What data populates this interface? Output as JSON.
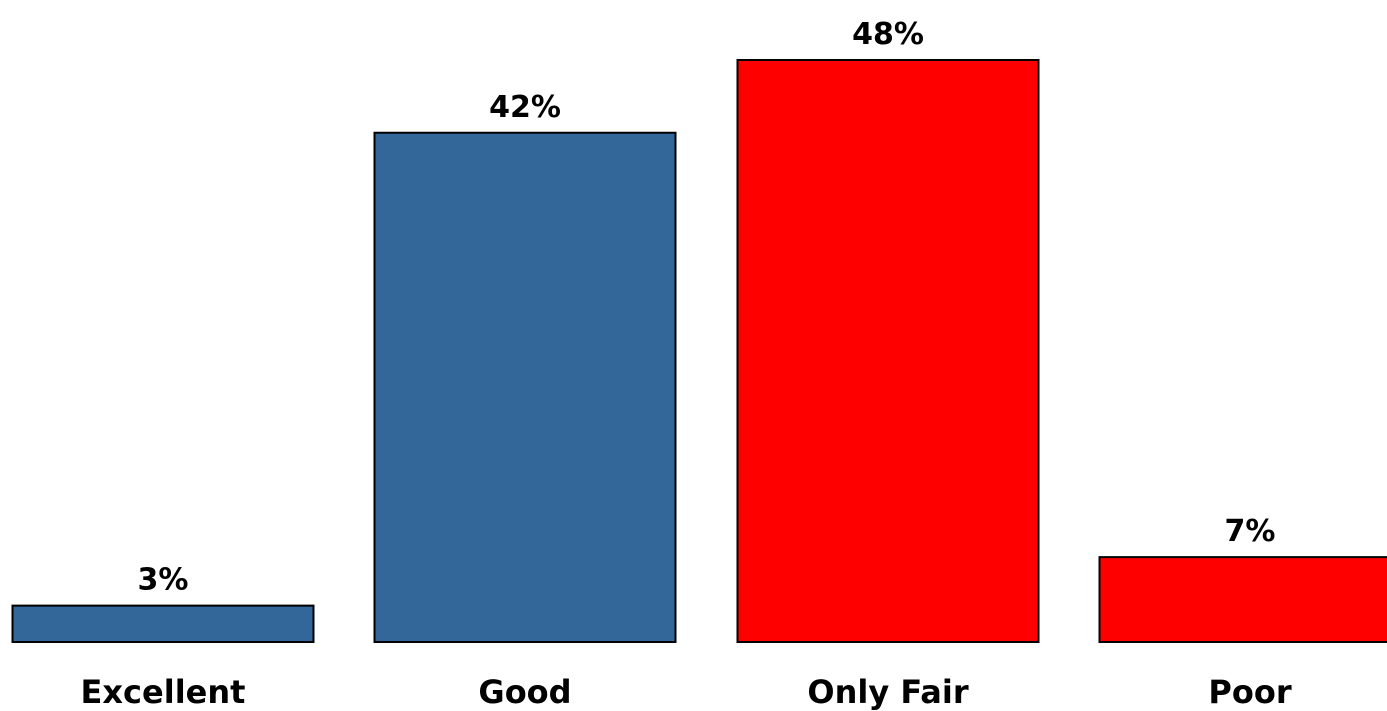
{
  "chart_data": {
    "type": "bar",
    "categories": [
      "Excellent",
      "Good",
      "Only Fair",
      "Poor"
    ],
    "values": [
      3,
      42,
      48,
      7
    ],
    "value_labels": [
      "3%",
      "42%",
      "48%",
      "7%"
    ],
    "colors": [
      "#336699",
      "#336699",
      "#FF0000",
      "#FF0000"
    ],
    "ylim": [
      0,
      48
    ],
    "grid": false,
    "legend": "none"
  }
}
